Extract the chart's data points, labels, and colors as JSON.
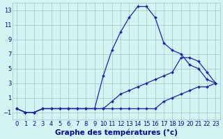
{
  "xlabel": "Graphe des températures (°c)",
  "hours": [
    0,
    1,
    2,
    3,
    4,
    5,
    6,
    7,
    8,
    9,
    10,
    11,
    12,
    13,
    14,
    15,
    16,
    17,
    18,
    19,
    20,
    21,
    22,
    23
  ],
  "line1": [
    -0.5,
    -1.0,
    -1.0,
    -0.5,
    -0.5,
    -0.5,
    -0.5,
    -0.5,
    -0.5,
    -0.5,
    4.0,
    7.5,
    10.0,
    12.0,
    13.5,
    13.5,
    12.0,
    8.5,
    7.5,
    7.0,
    5.5,
    5.0,
    3.5,
    3.0
  ],
  "line2": [
    -0.5,
    -1.0,
    -1.0,
    -0.5,
    -0.5,
    -0.5,
    -0.5,
    -0.5,
    -0.5,
    -0.5,
    -0.5,
    0.5,
    1.5,
    2.0,
    2.5,
    3.0,
    3.5,
    4.0,
    4.5,
    6.5,
    6.5,
    6.0,
    4.5,
    3.0
  ],
  "line3": [
    -0.5,
    -1.0,
    -1.0,
    -0.5,
    -0.5,
    -0.5,
    -0.5,
    -0.5,
    -0.5,
    -0.5,
    -0.5,
    -0.5,
    -0.5,
    -0.5,
    -0.5,
    -0.5,
    -0.5,
    0.5,
    1.0,
    1.5,
    2.0,
    2.5,
    2.5,
    3.0
  ],
  "line_color": "#1c1ccc",
  "bg_color": "#d4f4f4",
  "grid_color": "#a0c4c4",
  "label_color": "#0000aa",
  "ylim": [
    -2,
    14
  ],
  "yticks": [
    -1,
    1,
    3,
    5,
    7,
    9,
    11,
    13
  ],
  "xticks": [
    0,
    1,
    2,
    3,
    4,
    5,
    6,
    7,
    8,
    9,
    10,
    11,
    12,
    13,
    14,
    15,
    16,
    17,
    18,
    19,
    20,
    21,
    22,
    23
  ],
  "xlabel_fontsize": 7.5,
  "tick_fontsize": 6.0,
  "figwidth": 3.2,
  "figheight": 2.0,
  "dpi": 100
}
